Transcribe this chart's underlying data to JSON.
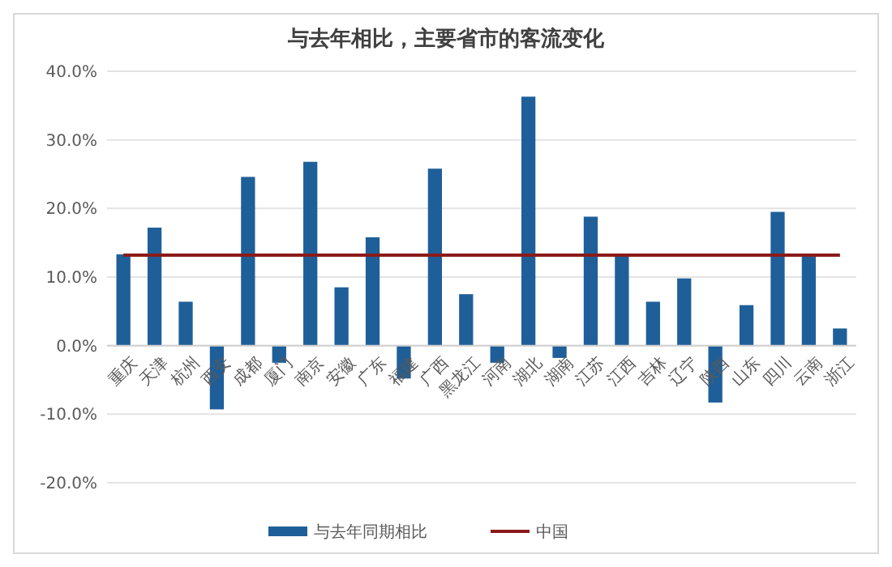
{
  "chart_data": {
    "type": "bar",
    "title": "与去年相比，主要省市的客流变化",
    "categories": [
      "重庆",
      "天津",
      "杭州",
      "西安",
      "成都",
      "厦门",
      "南京",
      "安徽",
      "广东",
      "福建",
      "广西",
      "黑龙江",
      "河南",
      "湖北",
      "湖南",
      "江苏",
      "江西",
      "吉林",
      "辽宁",
      "陕西",
      "山东",
      "四川",
      "云南",
      "浙江"
    ],
    "series": [
      {
        "name": "与去年同期相比",
        "color": "#1f5f99",
        "values": [
          13.3,
          17.2,
          6.4,
          -9.3,
          24.6,
          -2.5,
          26.8,
          8.5,
          15.8,
          -4.8,
          25.8,
          7.5,
          -2.5,
          36.3,
          -1.8,
          18.8,
          13.2,
          6.4,
          9.8,
          -8.3,
          5.9,
          19.5,
          13.2,
          2.5
        ]
      },
      {
        "name": "中国",
        "type": "line",
        "color": "#8b1a1a",
        "values": [
          13.2,
          13.2,
          13.2,
          13.2,
          13.2,
          13.2,
          13.2,
          13.2,
          13.2,
          13.2,
          13.2,
          13.2,
          13.2,
          13.2,
          13.2,
          13.2,
          13.2,
          13.2,
          13.2,
          13.2,
          13.2,
          13.2,
          13.2,
          13.2
        ]
      }
    ],
    "ylim": [
      -20,
      40
    ],
    "yticks": [
      {
        "value": -20,
        "label": "-20.0%"
      },
      {
        "value": -10,
        "label": "-10.0%"
      },
      {
        "value": 0,
        "label": "0.0%"
      },
      {
        "value": 10,
        "label": "10.0%"
      },
      {
        "value": 20,
        "label": "20.0%"
      },
      {
        "value": 30,
        "label": "30.0%"
      },
      {
        "value": 40,
        "label": "40.0%"
      }
    ],
    "grid": "y",
    "legend": "bottom"
  }
}
